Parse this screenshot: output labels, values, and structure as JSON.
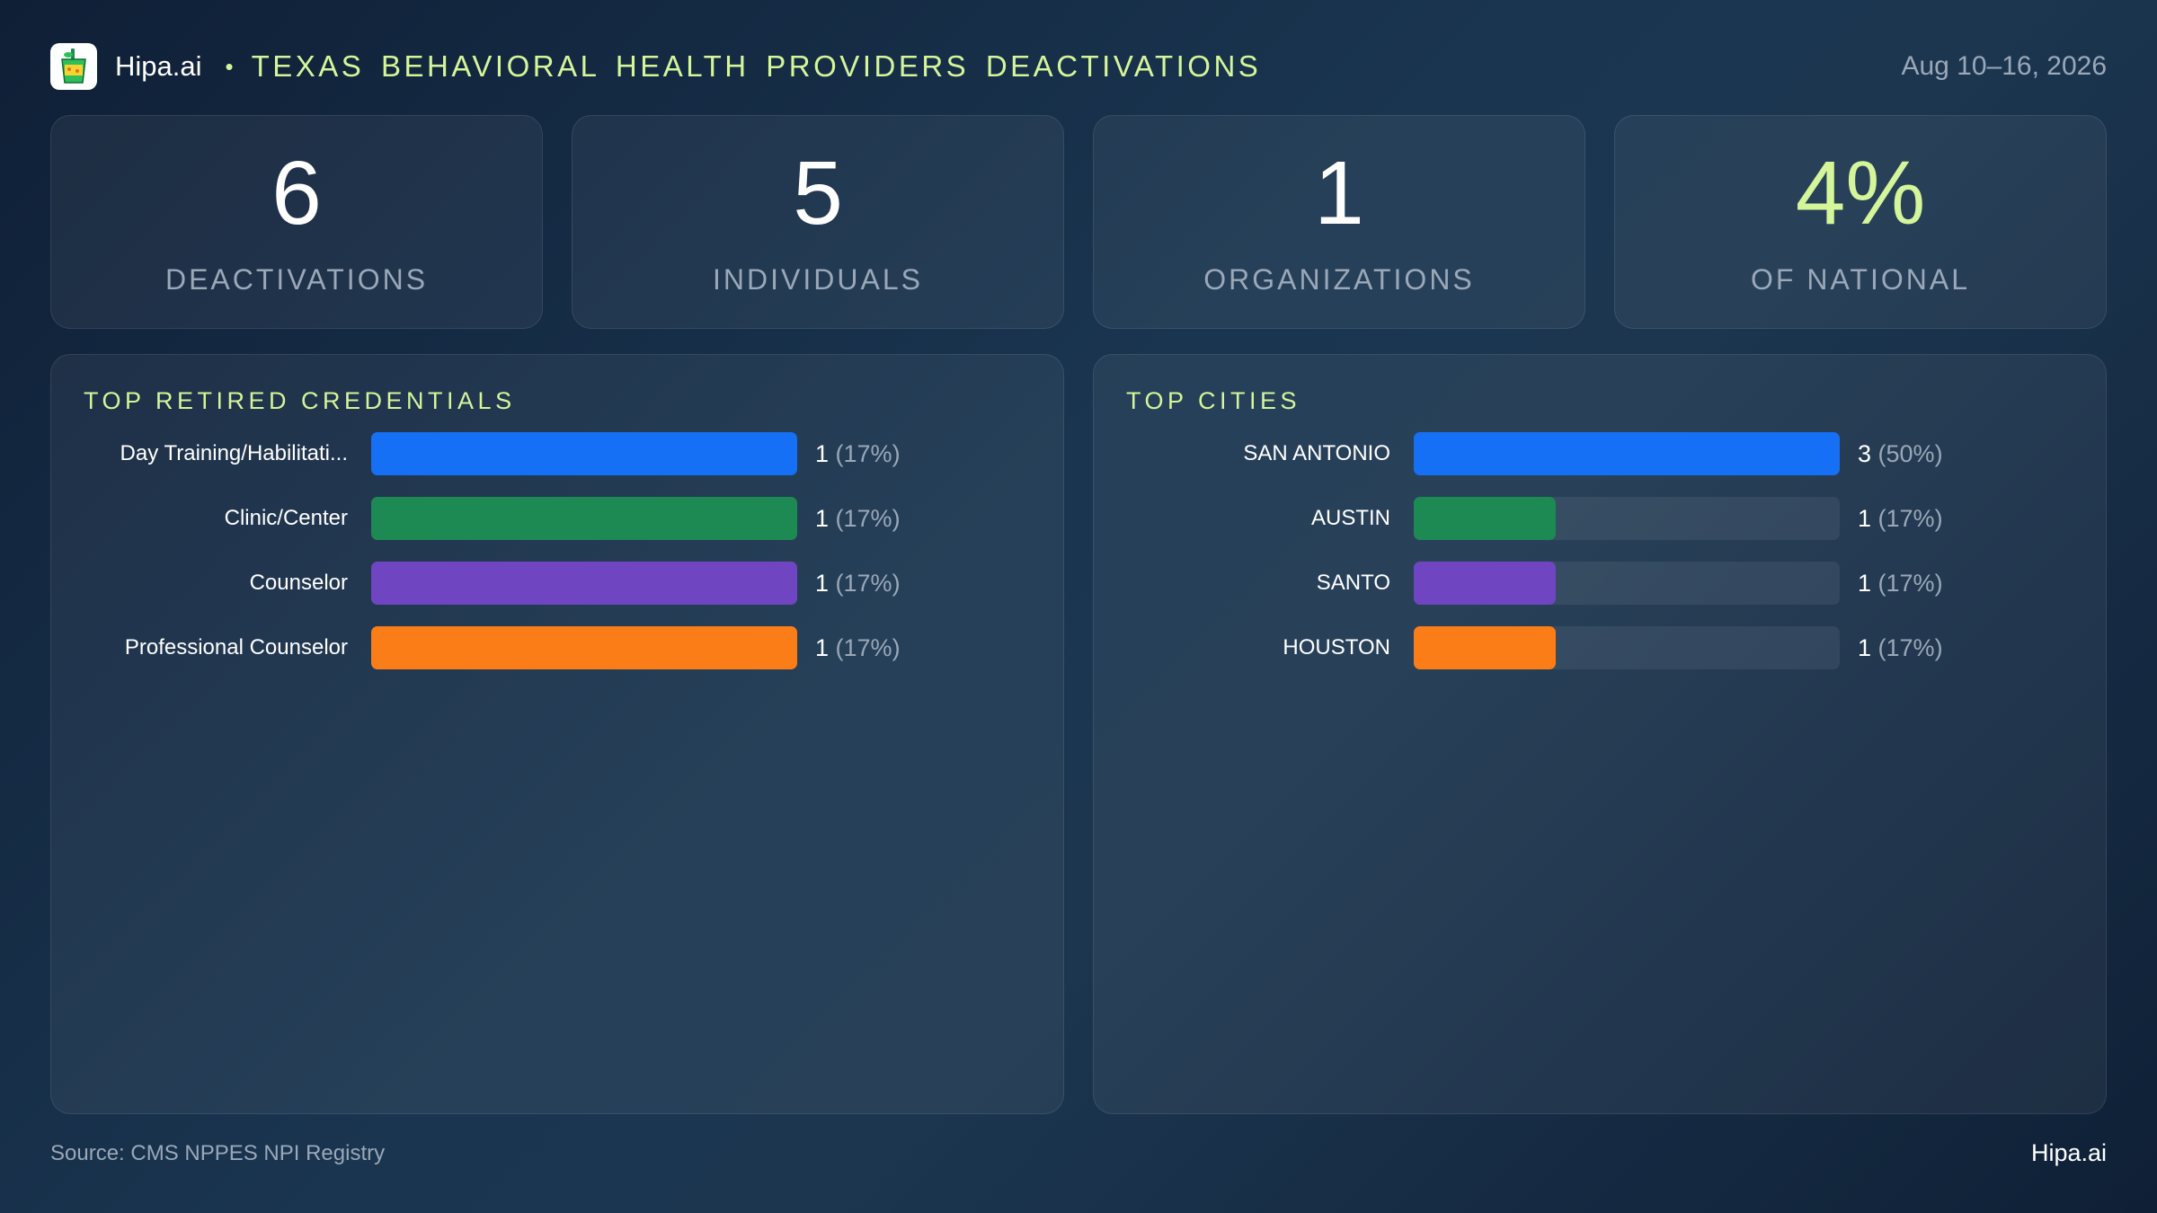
{
  "header": {
    "brand": "Hipa.ai",
    "separator": "•",
    "title": "TEXAS BEHAVIORAL HEALTH PROVIDERS DEACTIVATIONS",
    "date_range": "Aug 10–16, 2026"
  },
  "kpis": [
    {
      "value": "6",
      "label": "DEACTIVATIONS"
    },
    {
      "value": "5",
      "label": "INDIVIDUALS"
    },
    {
      "value": "1",
      "label": "ORGANIZATIONS"
    },
    {
      "value": "4%",
      "label": "OF NATIONAL"
    }
  ],
  "colors": {
    "accent": "#d5f59a",
    "blue": "#1570f6",
    "green": "#1c8a52",
    "purple": "#6f45c2",
    "orange": "#fb7d17"
  },
  "chart_data": [
    {
      "type": "bar",
      "orientation": "horizontal",
      "title": "TOP RETIRED CREDENTIALS",
      "categories": [
        "Day Training/Habilitati...",
        "Clinic/Center",
        "Counselor",
        "Professional Counselor"
      ],
      "values": [
        1,
        1,
        1,
        1
      ],
      "value_labels": [
        "1",
        "1",
        "1",
        "1"
      ],
      "percent_labels": [
        "(17%)",
        "(17%)",
        "(17%)",
        "(17%)"
      ],
      "max": 1,
      "bar_colors": [
        "#1570f6",
        "#1c8a52",
        "#6f45c2",
        "#fb7d17"
      ]
    },
    {
      "type": "bar",
      "orientation": "horizontal",
      "title": "TOP CITIES",
      "categories": [
        "SAN ANTONIO",
        "AUSTIN",
        "SANTO",
        "HOUSTON"
      ],
      "values": [
        3,
        1,
        1,
        1
      ],
      "value_labels": [
        "3",
        "1",
        "1",
        "1"
      ],
      "percent_labels": [
        "(50%)",
        "(17%)",
        "(17%)",
        "(17%)"
      ],
      "max": 3,
      "bar_colors": [
        "#1570f6",
        "#1c8a52",
        "#6f45c2",
        "#fb7d17"
      ]
    }
  ],
  "footer": {
    "source": "Source: CMS NPPES NPI Registry",
    "brand": "Hipa.ai"
  }
}
